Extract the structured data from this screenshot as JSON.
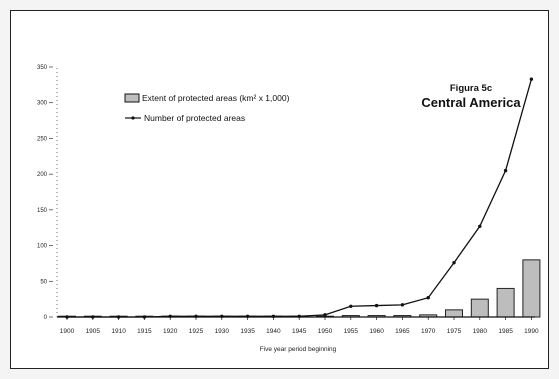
{
  "chart_data": {
    "type": "bar+line",
    "figure_label": "Figura 5c",
    "title": "Central America",
    "xlabel": "Five year period beginning",
    "ylabel": "",
    "categories": [
      "1900",
      "1905",
      "1910",
      "1915",
      "1920",
      "1925",
      "1930",
      "1935",
      "1940",
      "1945",
      "1950",
      "1955",
      "1960",
      "1965",
      "1970",
      "1975",
      "1980",
      "1985",
      "1990"
    ],
    "ylim": [
      0,
      350
    ],
    "yticks": [
      0,
      50,
      100,
      150,
      200,
      250,
      300,
      350
    ],
    "grid": false,
    "legend_position": "top-left",
    "series": [
      {
        "name": "Extent of protected areas (km² x 1,000)",
        "type": "bar",
        "color": "#bdbdbd",
        "values": [
          0,
          0,
          0,
          0,
          0.5,
          0.5,
          0.5,
          0.5,
          0.5,
          0.5,
          1,
          2,
          2,
          2,
          3,
          10,
          25,
          40,
          80
        ]
      },
      {
        "name": "Number of protected areas",
        "type": "line",
        "color": "#111111",
        "values": [
          0,
          0,
          0,
          0,
          1,
          1,
          1,
          1,
          1,
          1,
          3,
          15,
          16,
          17,
          27,
          76,
          127,
          205,
          333
        ]
      }
    ]
  }
}
